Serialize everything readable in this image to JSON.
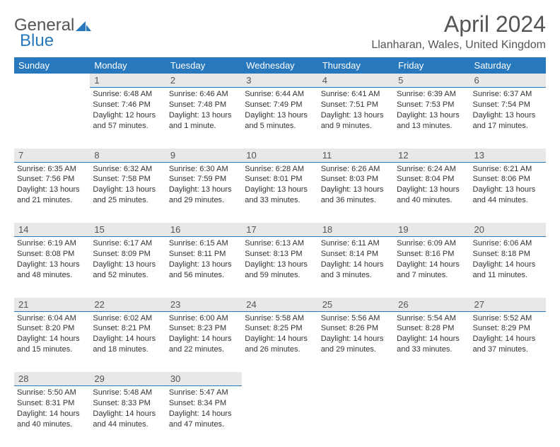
{
  "logo": {
    "text1": "General",
    "text2": "Blue"
  },
  "title": "April 2024",
  "location": "Llanharan, Wales, United Kingdom",
  "dow": [
    "Sunday",
    "Monday",
    "Tuesday",
    "Wednesday",
    "Thursday",
    "Friday",
    "Saturday"
  ],
  "header_bg": "#2878bd",
  "header_fg": "#ffffff",
  "daynum_bg": "#e8e8e8",
  "border_color": "#2878bd",
  "weeks": [
    {
      "nums": [
        "",
        "1",
        "2",
        "3",
        "4",
        "5",
        "6"
      ],
      "cells": [
        null,
        {
          "sr": "Sunrise: 6:48 AM",
          "ss": "Sunset: 7:46 PM",
          "d1": "Daylight: 12 hours",
          "d2": "and 57 minutes."
        },
        {
          "sr": "Sunrise: 6:46 AM",
          "ss": "Sunset: 7:48 PM",
          "d1": "Daylight: 13 hours",
          "d2": "and 1 minute."
        },
        {
          "sr": "Sunrise: 6:44 AM",
          "ss": "Sunset: 7:49 PM",
          "d1": "Daylight: 13 hours",
          "d2": "and 5 minutes."
        },
        {
          "sr": "Sunrise: 6:41 AM",
          "ss": "Sunset: 7:51 PM",
          "d1": "Daylight: 13 hours",
          "d2": "and 9 minutes."
        },
        {
          "sr": "Sunrise: 6:39 AM",
          "ss": "Sunset: 7:53 PM",
          "d1": "Daylight: 13 hours",
          "d2": "and 13 minutes."
        },
        {
          "sr": "Sunrise: 6:37 AM",
          "ss": "Sunset: 7:54 PM",
          "d1": "Daylight: 13 hours",
          "d2": "and 17 minutes."
        }
      ]
    },
    {
      "nums": [
        "7",
        "8",
        "9",
        "10",
        "11",
        "12",
        "13"
      ],
      "cells": [
        {
          "sr": "Sunrise: 6:35 AM",
          "ss": "Sunset: 7:56 PM",
          "d1": "Daylight: 13 hours",
          "d2": "and 21 minutes."
        },
        {
          "sr": "Sunrise: 6:32 AM",
          "ss": "Sunset: 7:58 PM",
          "d1": "Daylight: 13 hours",
          "d2": "and 25 minutes."
        },
        {
          "sr": "Sunrise: 6:30 AM",
          "ss": "Sunset: 7:59 PM",
          "d1": "Daylight: 13 hours",
          "d2": "and 29 minutes."
        },
        {
          "sr": "Sunrise: 6:28 AM",
          "ss": "Sunset: 8:01 PM",
          "d1": "Daylight: 13 hours",
          "d2": "and 33 minutes."
        },
        {
          "sr": "Sunrise: 6:26 AM",
          "ss": "Sunset: 8:03 PM",
          "d1": "Daylight: 13 hours",
          "d2": "and 36 minutes."
        },
        {
          "sr": "Sunrise: 6:24 AM",
          "ss": "Sunset: 8:04 PM",
          "d1": "Daylight: 13 hours",
          "d2": "and 40 minutes."
        },
        {
          "sr": "Sunrise: 6:21 AM",
          "ss": "Sunset: 8:06 PM",
          "d1": "Daylight: 13 hours",
          "d2": "and 44 minutes."
        }
      ]
    },
    {
      "nums": [
        "14",
        "15",
        "16",
        "17",
        "18",
        "19",
        "20"
      ],
      "cells": [
        {
          "sr": "Sunrise: 6:19 AM",
          "ss": "Sunset: 8:08 PM",
          "d1": "Daylight: 13 hours",
          "d2": "and 48 minutes."
        },
        {
          "sr": "Sunrise: 6:17 AM",
          "ss": "Sunset: 8:09 PM",
          "d1": "Daylight: 13 hours",
          "d2": "and 52 minutes."
        },
        {
          "sr": "Sunrise: 6:15 AM",
          "ss": "Sunset: 8:11 PM",
          "d1": "Daylight: 13 hours",
          "d2": "and 56 minutes."
        },
        {
          "sr": "Sunrise: 6:13 AM",
          "ss": "Sunset: 8:13 PM",
          "d1": "Daylight: 13 hours",
          "d2": "and 59 minutes."
        },
        {
          "sr": "Sunrise: 6:11 AM",
          "ss": "Sunset: 8:14 PM",
          "d1": "Daylight: 14 hours",
          "d2": "and 3 minutes."
        },
        {
          "sr": "Sunrise: 6:09 AM",
          "ss": "Sunset: 8:16 PM",
          "d1": "Daylight: 14 hours",
          "d2": "and 7 minutes."
        },
        {
          "sr": "Sunrise: 6:06 AM",
          "ss": "Sunset: 8:18 PM",
          "d1": "Daylight: 14 hours",
          "d2": "and 11 minutes."
        }
      ]
    },
    {
      "nums": [
        "21",
        "22",
        "23",
        "24",
        "25",
        "26",
        "27"
      ],
      "cells": [
        {
          "sr": "Sunrise: 6:04 AM",
          "ss": "Sunset: 8:20 PM",
          "d1": "Daylight: 14 hours",
          "d2": "and 15 minutes."
        },
        {
          "sr": "Sunrise: 6:02 AM",
          "ss": "Sunset: 8:21 PM",
          "d1": "Daylight: 14 hours",
          "d2": "and 18 minutes."
        },
        {
          "sr": "Sunrise: 6:00 AM",
          "ss": "Sunset: 8:23 PM",
          "d1": "Daylight: 14 hours",
          "d2": "and 22 minutes."
        },
        {
          "sr": "Sunrise: 5:58 AM",
          "ss": "Sunset: 8:25 PM",
          "d1": "Daylight: 14 hours",
          "d2": "and 26 minutes."
        },
        {
          "sr": "Sunrise: 5:56 AM",
          "ss": "Sunset: 8:26 PM",
          "d1": "Daylight: 14 hours",
          "d2": "and 29 minutes."
        },
        {
          "sr": "Sunrise: 5:54 AM",
          "ss": "Sunset: 8:28 PM",
          "d1": "Daylight: 14 hours",
          "d2": "and 33 minutes."
        },
        {
          "sr": "Sunrise: 5:52 AM",
          "ss": "Sunset: 8:29 PM",
          "d1": "Daylight: 14 hours",
          "d2": "and 37 minutes."
        }
      ]
    },
    {
      "nums": [
        "28",
        "29",
        "30",
        "",
        "",
        "",
        ""
      ],
      "cells": [
        {
          "sr": "Sunrise: 5:50 AM",
          "ss": "Sunset: 8:31 PM",
          "d1": "Daylight: 14 hours",
          "d2": "and 40 minutes."
        },
        {
          "sr": "Sunrise: 5:48 AM",
          "ss": "Sunset: 8:33 PM",
          "d1": "Daylight: 14 hours",
          "d2": "and 44 minutes."
        },
        {
          "sr": "Sunrise: 5:47 AM",
          "ss": "Sunset: 8:34 PM",
          "d1": "Daylight: 14 hours",
          "d2": "and 47 minutes."
        },
        null,
        null,
        null,
        null
      ]
    }
  ]
}
